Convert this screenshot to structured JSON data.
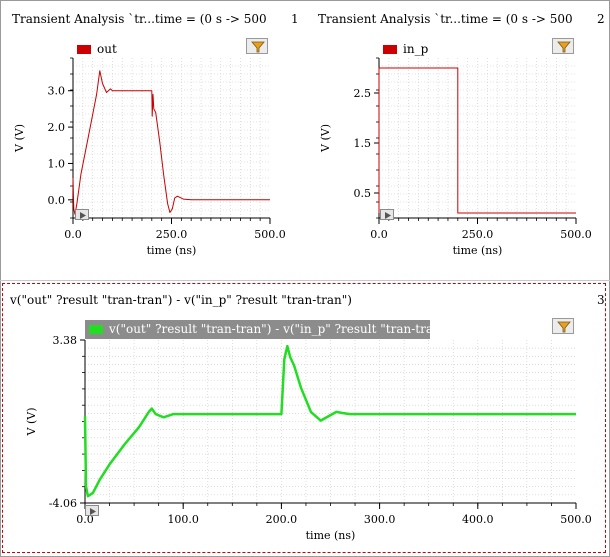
{
  "panes": [
    {
      "title": "Transient Analysis `tr...time = (0 s -> 500",
      "number": "1"
    },
    {
      "title": "Transient Analysis `tr...time = (0 s -> 500",
      "number": "2"
    },
    {
      "title": "v(\"out\" ?result \"tran-tran\") - v(\"in_p\" ?result \"tran-tran\")",
      "number": "3"
    }
  ],
  "colors": {
    "out": "#cc0000",
    "in_p": "#cc0000",
    "diff": "#22dd22",
    "grid": "#c8c8c8",
    "selection": "#cc0000"
  },
  "icons": {
    "filter": "funnel-icon",
    "play": "play-icon"
  },
  "chart_data": [
    {
      "type": "line",
      "title": "",
      "xlabel": "time (ns)",
      "ylabel": "V (V)",
      "xlim": [
        0,
        500
      ],
      "ylim": [
        -0.5,
        3.9
      ],
      "xticks": [
        0,
        250,
        500
      ],
      "xtick_labels": [
        "0.0",
        "250.0",
        "500.0"
      ],
      "yticks": [
        0,
        1,
        2,
        3
      ],
      "ytick_labels": [
        "0.0",
        "1.0",
        "2.0",
        "3.0"
      ],
      "series": [
        {
          "name": "out",
          "x": [
            0,
            2,
            5,
            10,
            20,
            40,
            60,
            68,
            75,
            85,
            95,
            100,
            150,
            190,
            200,
            201,
            203,
            205,
            210,
            220,
            230,
            240,
            246,
            252,
            258,
            265,
            280,
            300,
            400,
            500
          ],
          "y": [
            0.6,
            -0.25,
            -0.4,
            -0.1,
            0.7,
            1.8,
            2.9,
            3.55,
            3.2,
            2.95,
            3.05,
            3.0,
            3.0,
            3.0,
            3.0,
            2.3,
            2.9,
            2.5,
            2.4,
            1.6,
            0.7,
            -0.1,
            -0.35,
            -0.25,
            0.05,
            0.1,
            0.02,
            0.0,
            0.0,
            0.0
          ]
        }
      ]
    },
    {
      "type": "line",
      "title": "",
      "xlabel": "time (ns)",
      "ylabel": "V (V)",
      "xlim": [
        0,
        500
      ],
      "ylim": [
        0.0,
        3.2
      ],
      "xticks": [
        0,
        250,
        500
      ],
      "xtick_labels": [
        "0.0",
        "250.0",
        "500.0"
      ],
      "yticks": [
        0.5,
        1.5,
        2.5
      ],
      "ytick_labels": [
        "0.5",
        "1.5",
        "2.5"
      ],
      "series": [
        {
          "name": "in_p",
          "x": [
            0,
            0,
            200,
            200,
            500
          ],
          "y": [
            0.1,
            3.0,
            3.0,
            0.1,
            0.1
          ]
        }
      ]
    },
    {
      "type": "line",
      "title": "",
      "xlabel": "time (ns)",
      "ylabel": "V (V)",
      "xlim": [
        0,
        500
      ],
      "ylim": [
        -4.06,
        3.38
      ],
      "xticks": [
        0,
        100,
        200,
        300,
        400,
        500
      ],
      "xtick_labels": [
        "0.0",
        "100.0",
        "200.0",
        "300.0",
        "400.0",
        "500.0"
      ],
      "yticks": [
        -4.06,
        3.38
      ],
      "ytick_labels": [
        "-4.06",
        "3.38"
      ],
      "series": [
        {
          "name": "v(\"out\" ?result \"tran-tran\") - v(\"in_p\" ?result \"tran-tran\")",
          "x": [
            0,
            1,
            3,
            8,
            15,
            25,
            40,
            55,
            65,
            68,
            72,
            80,
            90,
            100,
            150,
            195,
            200,
            203,
            206,
            209,
            213,
            220,
            230,
            240,
            250,
            256,
            262,
            270,
            300,
            400,
            500
          ],
          "y": [
            -0.1,
            -3.3,
            -3.75,
            -3.6,
            -3.0,
            -2.3,
            -1.4,
            -0.6,
            0.1,
            0.25,
            0.0,
            -0.15,
            0.0,
            0.0,
            0.0,
            0.0,
            0.0,
            2.5,
            3.1,
            2.6,
            2.2,
            1.2,
            0.1,
            -0.3,
            -0.05,
            0.1,
            0.05,
            0.0,
            0.0,
            0.0,
            0.0
          ]
        }
      ]
    }
  ]
}
